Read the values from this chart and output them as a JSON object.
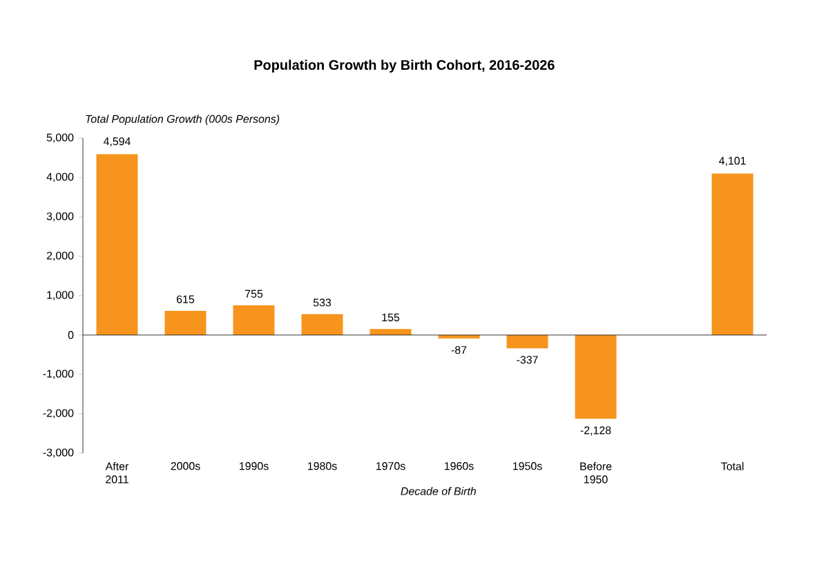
{
  "chart_data": {
    "type": "bar",
    "title": "Population Growth by Birth Cohort, 2016-2026",
    "xlabel": "Decade of Birth",
    "ylabel": "Total Population Growth (000s Persons)",
    "categories": [
      "After 2011",
      "2000s",
      "1990s",
      "1980s",
      "1970s",
      "1960s",
      "1950s",
      "Before 1950",
      null,
      "Total"
    ],
    "values": [
      4594,
      615,
      755,
      533,
      155,
      -87,
      -337,
      -2128,
      null,
      4101
    ],
    "value_labels": [
      "4,594",
      "615",
      "755",
      "533",
      "155",
      "-87",
      "-337",
      "-2,128",
      null,
      "4,101"
    ],
    "color": "#f7941d",
    "ylim": [
      -3000,
      5000
    ],
    "yticks": [
      {
        "value": -3000,
        "label": "-3,000"
      },
      {
        "value": -2000,
        "label": "-2,000"
      },
      {
        "value": -1000,
        "label": "-1,000"
      },
      0,
      {
        "value": 1000,
        "label": "1,000"
      },
      {
        "value": 2000,
        "label": "2,000"
      },
      {
        "value": 3000,
        "label": "3,000"
      },
      {
        "value": 4000,
        "label": "4,000"
      },
      {
        "value": 5000,
        "label": "5,000"
      }
    ],
    "tick_labels": "xy"
  }
}
